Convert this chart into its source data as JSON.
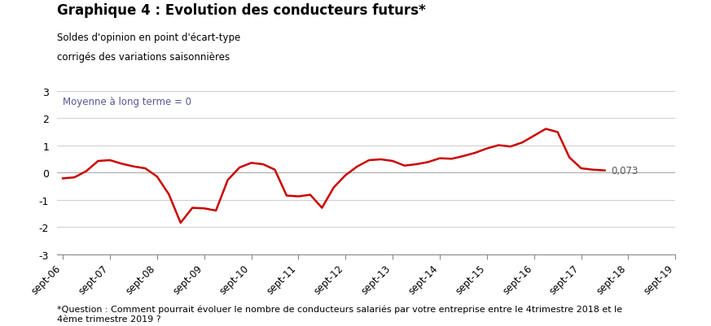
{
  "title": "Graphique 4 : Evolution des conducteurs futurs*",
  "subtitle1": "Soldes d'opinion en point d'écart-type",
  "subtitle2": "corrigés des variations saisonnières",
  "mean_label": "Moyenne à long terme = 0",
  "footnote": "*Question : Comment pourrait évoluer le nombre de conducteurs salariés par votre entreprise entre le 4trimestre 2018 et le\n4ème trimestre 2019 ?",
  "last_value_label": "0,073",
  "line_color": "#cc0000",
  "line_width": 1.8,
  "zero_line_color": "#aaaaaa",
  "grid_color": "#cccccc",
  "x_labels": [
    "sept-06",
    "sept-07",
    "sept-08",
    "sept-09",
    "sept-10",
    "sept-11",
    "sept-12",
    "sept-13",
    "sept-14",
    "sept-15",
    "sept-16",
    "sept-17",
    "sept-18",
    "sept-19"
  ],
  "x_tick_positions": [
    0,
    4,
    8,
    12,
    16,
    20,
    24,
    28,
    32,
    36,
    40,
    44,
    48,
    52
  ],
  "ylim": [
    -3,
    3
  ],
  "yticks": [
    -3,
    -2,
    -1,
    0,
    1,
    2,
    3
  ],
  "values": [
    -0.22,
    -0.18,
    0.05,
    0.42,
    0.45,
    0.32,
    0.22,
    0.15,
    -0.15,
    -0.8,
    -1.85,
    -1.3,
    -1.32,
    -1.4,
    -0.28,
    0.18,
    0.35,
    0.3,
    0.1,
    -0.85,
    -0.88,
    -0.82,
    -1.3,
    -0.55,
    -0.1,
    0.22,
    0.45,
    0.48,
    0.42,
    0.25,
    0.3,
    0.38,
    0.52,
    0.5,
    0.6,
    0.72,
    0.88,
    1.0,
    0.95,
    1.1,
    1.35,
    1.6,
    1.48,
    0.55,
    0.15,
    0.1,
    0.073
  ]
}
